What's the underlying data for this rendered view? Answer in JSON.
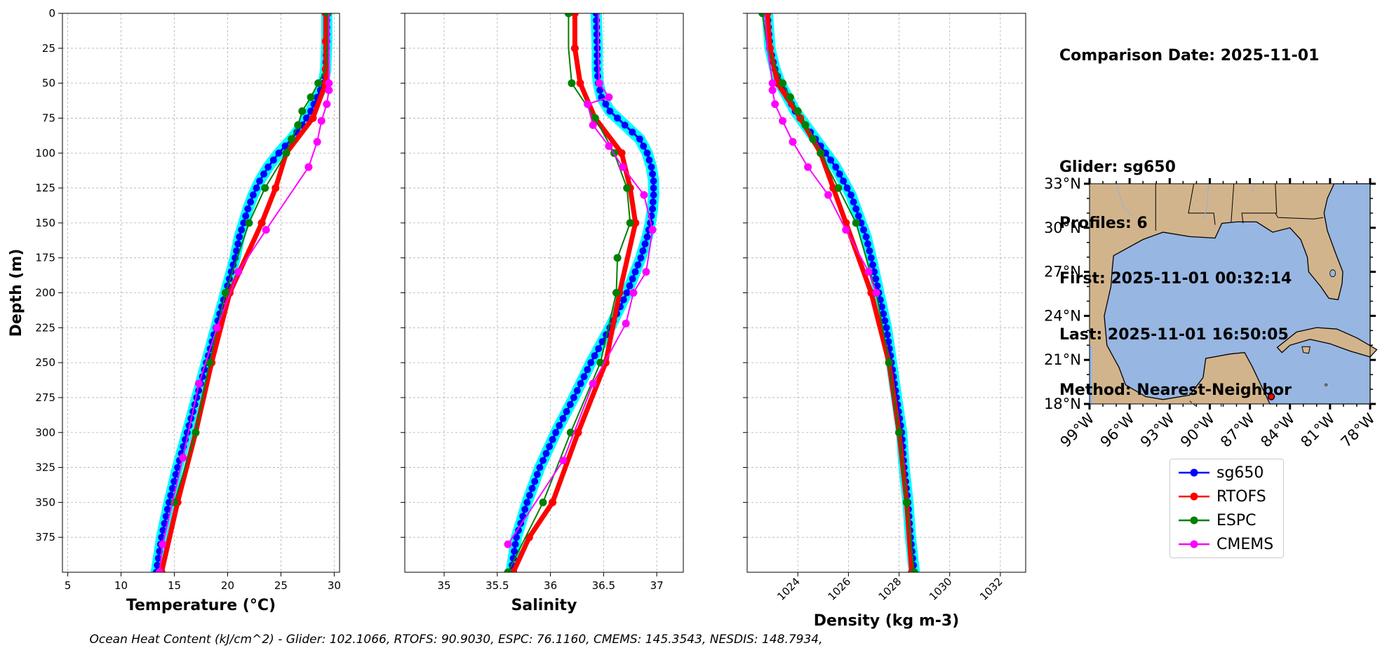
{
  "info": {
    "date": "Comparison Date: 2025-11-01",
    "blank": " ",
    "glider": "Glider: sg650",
    "profiles": "Profiles: 6",
    "first": "First: 2025-11-01 00:32:14",
    "last": "Last: 2025-11-01 16:50:05",
    "method": "Method: Nearest-Neighbor"
  },
  "footer": "Ocean Heat Content (kJ/cm^2) - Glider: 102.1066,  RTOFS: 90.9030,  ESPC: 76.1160,  CMEMS: 145.3543,  NESDIS: 148.7934,",
  "colors": {
    "sg650": "#0000ff",
    "sg650_halo": "#00ffff",
    "RTOFS": "#ff0000",
    "ESPC": "#008000",
    "CMEMS": "#ff00ff",
    "land": "#d2b48c",
    "ocean": "#97b6e1",
    "grid": "#b0b0b0"
  },
  "legend": [
    {
      "name": "sg650",
      "color": "#0000ff"
    },
    {
      "name": "RTOFS",
      "color": "#ff0000"
    },
    {
      "name": "ESPC",
      "color": "#008000"
    },
    {
      "name": "CMEMS",
      "color": "#ff00ff"
    }
  ],
  "chart_data": [
    {
      "type": "line",
      "xlabel": "Temperature (°C)",
      "ylabel": "Depth (m)",
      "xlim": [
        4.5,
        30.5
      ],
      "ylim": [
        400,
        0
      ],
      "xticks": [
        5,
        10,
        15,
        20,
        25,
        30
      ],
      "yticks": [
        0,
        25,
        50,
        75,
        100,
        125,
        150,
        175,
        200,
        225,
        250,
        275,
        300,
        325,
        350,
        375
      ],
      "grid": true,
      "series": [
        {
          "name": "sg650",
          "depth": [
            0,
            20,
            40,
            50,
            60,
            70,
            80,
            90,
            100,
            110,
            120,
            130,
            140,
            150,
            160,
            175,
            200,
            225,
            250,
            275,
            300,
            325,
            350,
            375,
            400
          ],
          "values": [
            29.3,
            29.3,
            29.2,
            29.0,
            28.4,
            27.8,
            27.0,
            26.0,
            24.8,
            23.8,
            23.0,
            22.4,
            21.9,
            21.5,
            21.1,
            20.7,
            19.8,
            18.9,
            18.0,
            17.1,
            16.2,
            15.3,
            14.5,
            13.8,
            13.3
          ]
        },
        {
          "name": "RTOFS",
          "depth": [
            0,
            20,
            40,
            50,
            75,
            100,
            125,
            150,
            200,
            250,
            300,
            350,
            400
          ],
          "values": [
            29.2,
            29.2,
            29.2,
            29.2,
            28.0,
            25.5,
            24.5,
            23.2,
            20.2,
            18.5,
            17.0,
            15.3,
            13.8
          ]
        },
        {
          "name": "ESPC",
          "depth": [
            0,
            20,
            40,
            50,
            60,
            70,
            80,
            90,
            100,
            125,
            150,
            200,
            250,
            300,
            350
          ],
          "values": [
            29.4,
            29.4,
            29.2,
            28.5,
            27.8,
            27.0,
            26.6,
            26.0,
            25.5,
            23.5,
            22.0,
            19.8,
            18.3,
            17.0,
            15.0
          ]
        },
        {
          "name": "CMEMS",
          "depth": [
            0,
            20,
            40,
            50,
            55,
            65,
            77,
            92,
            110,
            155,
            185,
            225,
            265,
            318,
            380,
            400
          ],
          "values": [
            29.5,
            29.5,
            29.5,
            29.5,
            29.5,
            29.3,
            28.8,
            28.4,
            27.6,
            23.6,
            21.0,
            19.0,
            17.3,
            15.8,
            13.9,
            13.6
          ]
        }
      ]
    },
    {
      "type": "line",
      "xlabel": "Salinity",
      "ylabel": "",
      "xlim": [
        34.63,
        37.25
      ],
      "ylim": [
        400,
        0
      ],
      "xticks": [
        35.0,
        35.5,
        36.0,
        36.5,
        37.0
      ],
      "grid": true,
      "series": [
        {
          "name": "sg650",
          "depth": [
            0,
            25,
            40,
            50,
            60,
            70,
            80,
            90,
            100,
            110,
            120,
            130,
            140,
            150,
            160,
            175,
            200,
            225,
            250,
            275,
            300,
            325,
            350,
            375,
            400
          ],
          "values": [
            36.43,
            36.44,
            36.44,
            36.45,
            36.48,
            36.56,
            36.7,
            36.84,
            36.91,
            36.95,
            36.97,
            36.97,
            36.96,
            36.94,
            36.91,
            36.85,
            36.72,
            36.56,
            36.38,
            36.22,
            36.05,
            35.9,
            35.78,
            35.68,
            35.63
          ]
        },
        {
          "name": "RTOFS",
          "depth": [
            0,
            25,
            50,
            75,
            100,
            125,
            150,
            200,
            250,
            300,
            350,
            375,
            400
          ],
          "values": [
            36.23,
            36.23,
            36.28,
            36.42,
            36.67,
            36.75,
            36.8,
            36.65,
            36.52,
            36.26,
            36.02,
            35.8,
            35.65
          ]
        },
        {
          "name": "ESPC",
          "depth": [
            0,
            25,
            50,
            75,
            100,
            125,
            150,
            175,
            200,
            250,
            300,
            350,
            400
          ],
          "values": [
            36.17,
            36.17,
            36.2,
            36.42,
            36.6,
            36.72,
            36.75,
            36.63,
            36.62,
            36.47,
            36.19,
            35.93,
            35.6
          ]
        },
        {
          "name": "CMEMS",
          "depth": [
            0,
            25,
            50,
            60,
            65,
            80,
            95,
            110,
            130,
            155,
            185,
            200,
            222,
            265,
            320,
            380
          ],
          "values": [
            36.45,
            36.45,
            36.46,
            36.55,
            36.35,
            36.4,
            36.55,
            36.68,
            36.88,
            36.96,
            36.9,
            36.78,
            36.71,
            36.4,
            36.12,
            35.6
          ]
        }
      ]
    },
    {
      "type": "line",
      "xlabel": "Density (kg m-3)",
      "ylabel": "",
      "xlim": [
        1022.0,
        1033.0
      ],
      "ylim": [
        400,
        0
      ],
      "xticks": [
        1024,
        1026,
        1028,
        1030,
        1032
      ],
      "grid": true,
      "series": [
        {
          "name": "sg650",
          "depth": [
            0,
            25,
            40,
            50,
            60,
            70,
            80,
            90,
            100,
            110,
            120,
            130,
            140,
            150,
            160,
            175,
            200,
            225,
            250,
            275,
            300,
            325,
            350,
            375,
            400
          ],
          "values": [
            1022.8,
            1022.9,
            1023.1,
            1023.3,
            1023.6,
            1023.9,
            1024.3,
            1024.7,
            1025.1,
            1025.5,
            1025.8,
            1026.1,
            1026.3,
            1026.5,
            1026.7,
            1026.9,
            1027.2,
            1027.5,
            1027.7,
            1027.9,
            1028.1,
            1028.2,
            1028.35,
            1028.45,
            1028.6
          ]
        },
        {
          "name": "RTOFS",
          "depth": [
            0,
            25,
            50,
            75,
            100,
            125,
            150,
            200,
            250,
            300,
            350,
            400
          ],
          "values": [
            1022.8,
            1022.9,
            1023.2,
            1024.1,
            1024.9,
            1025.4,
            1025.9,
            1026.9,
            1027.6,
            1028.0,
            1028.3,
            1028.5
          ]
        },
        {
          "name": "ESPC",
          "depth": [
            0,
            25,
            50,
            60,
            70,
            80,
            90,
            100,
            125,
            150,
            200,
            250,
            300,
            350,
            400
          ],
          "values": [
            1022.6,
            1022.8,
            1023.4,
            1023.7,
            1024.0,
            1024.3,
            1024.6,
            1024.9,
            1025.6,
            1026.3,
            1027.1,
            1027.6,
            1028.0,
            1028.3,
            1028.6
          ]
        },
        {
          "name": "CMEMS",
          "depth": [
            0,
            25,
            50,
            55,
            65,
            77,
            92,
            110,
            130,
            155,
            185,
            200
          ],
          "values": [
            1022.7,
            1022.8,
            1023.0,
            1023.0,
            1023.1,
            1023.4,
            1023.8,
            1024.4,
            1025.2,
            1025.9,
            1026.8,
            1027.1
          ]
        }
      ]
    }
  ],
  "map": {
    "lon_ticks": [
      "99°W",
      "96°W",
      "93°W",
      "90°W",
      "87°W",
      "84°W",
      "81°W",
      "78°W"
    ],
    "lat_ticks": [
      "33°N",
      "30°N",
      "27°N",
      "24°N",
      "21°N",
      "18°N"
    ],
    "lon_range": [
      -99,
      -78
    ],
    "lat_range": [
      18,
      33
    ],
    "glider_location": {
      "lon": -85.4,
      "lat": 18.5
    }
  }
}
